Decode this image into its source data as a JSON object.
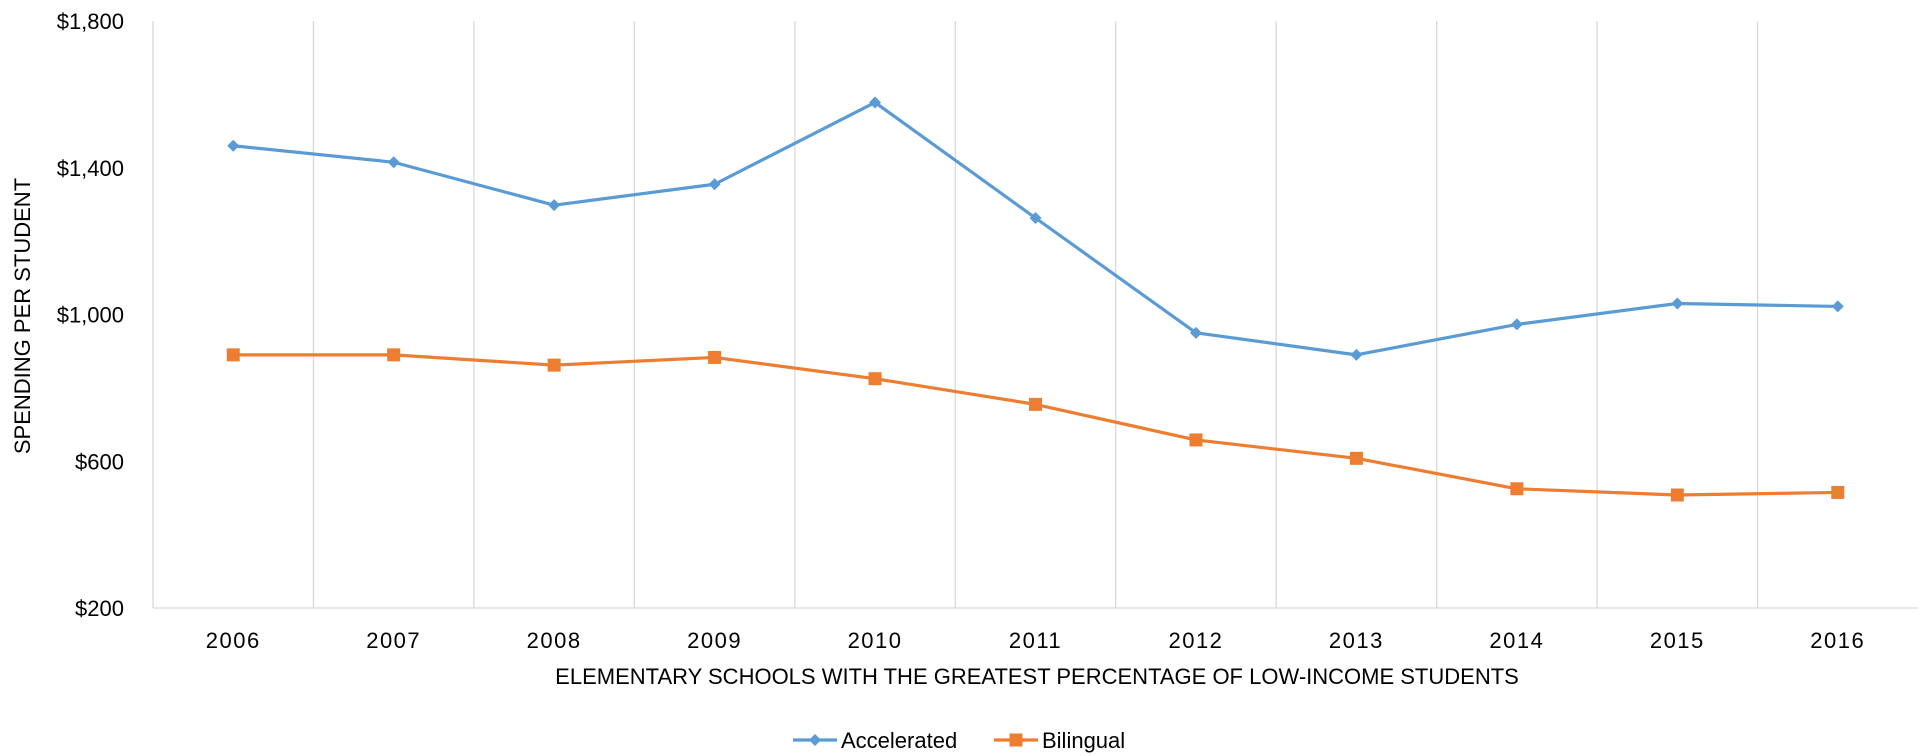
{
  "chart_data": {
    "type": "line",
    "title": "",
    "xlabel": "ELEMENTARY SCHOOLS WITH THE GREATEST PERCENTAGE OF LOW-INCOME STUDENTS",
    "ylabel": "SPENDING PER STUDENT",
    "categories": [
      "2006",
      "2007",
      "2008",
      "2009",
      "2010",
      "2011",
      "2012",
      "2013",
      "2014",
      "2015",
      "2016"
    ],
    "ylim": [
      200,
      1800
    ],
    "yticks": [
      200,
      600,
      1000,
      1400,
      1800
    ],
    "ytick_labels": [
      "$200",
      "$600",
      "$1,000",
      "$1,400",
      "$1,800"
    ],
    "grid": "vertical",
    "legend_position": "bottom",
    "series": [
      {
        "name": "Accelerated",
        "marker": "diamond",
        "color": "#5B9BD5",
        "values": [
          1460,
          1415,
          1298,
          1355,
          1578,
          1263,
          950,
          890,
          973,
          1030,
          1022
        ]
      },
      {
        "name": "Bilingual",
        "marker": "square",
        "color": "#ED7D31",
        "values": [
          890,
          890,
          862,
          883,
          825,
          755,
          658,
          608,
          525,
          508,
          515
        ]
      }
    ]
  }
}
